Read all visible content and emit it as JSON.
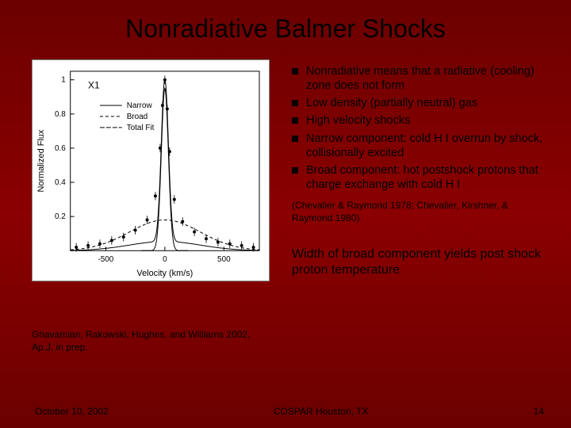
{
  "title": "Nonradiative Balmer Shocks",
  "bullets": [
    "Nonradiative means that a radiative (cooling) zone does not form",
    "Low density (partially neutral) gas",
    "High velocity shocks",
    "Narrow component: cold H I overrun by shock, collisionally excited",
    "Broad component: hot postshock protons that charge exchange with cold H I"
  ],
  "citation": "(Chevalier & Raymond 1978; Chevalier, Kirshner, & Raymond 1980)",
  "chart_credit": "Ghavamian, Rakowski, Hughes, and Williams 2002, Ap.J, in prep.",
  "conclusion": "Width of broad component yields post shock proton temperature",
  "footer": {
    "date": "October 10, 2002",
    "venue": "COSPAR Houston, TX",
    "page": "14"
  },
  "chart": {
    "type": "line",
    "background_color": "#ffffff",
    "xlabel": "Velocity (km/s)",
    "ylabel": "Normalized Flux",
    "annotation": "X1",
    "legend": [
      "Narrow",
      "Broad",
      "Total Fit"
    ],
    "xlim": [
      -800,
      800
    ],
    "xtick_step": 500,
    "xticks": [
      -500,
      0,
      500
    ],
    "ylim": [
      0,
      1.05
    ],
    "yticks": [
      0.2,
      0.4,
      0.6,
      0.8,
      1
    ],
    "label_fontsize": 11,
    "tick_fontsize": 10,
    "line_color": "#000000",
    "line_width": 1,
    "narrow": {
      "sigma": 30,
      "amplitude": 0.95,
      "style": "solid"
    },
    "broad": {
      "sigma": 300,
      "amplitude": 0.18,
      "style": "dashed"
    },
    "data_points": {
      "x": [
        -750,
        -650,
        -550,
        -450,
        -350,
        -250,
        -150,
        -80,
        -40,
        -20,
        0,
        20,
        40,
        80,
        150,
        250,
        350,
        450,
        550,
        650,
        750
      ],
      "y": [
        0.02,
        0.03,
        0.04,
        0.06,
        0.08,
        0.12,
        0.18,
        0.32,
        0.6,
        0.85,
        1.0,
        0.83,
        0.58,
        0.3,
        0.17,
        0.11,
        0.07,
        0.05,
        0.04,
        0.03,
        0.02
      ],
      "err": 0.025,
      "marker_size": 2
    }
  },
  "colors": {
    "slide_bg_top": "#6b0000",
    "slide_bg_mid": "#8b0000",
    "text": "#000000",
    "bullet_marker": "#000000"
  }
}
